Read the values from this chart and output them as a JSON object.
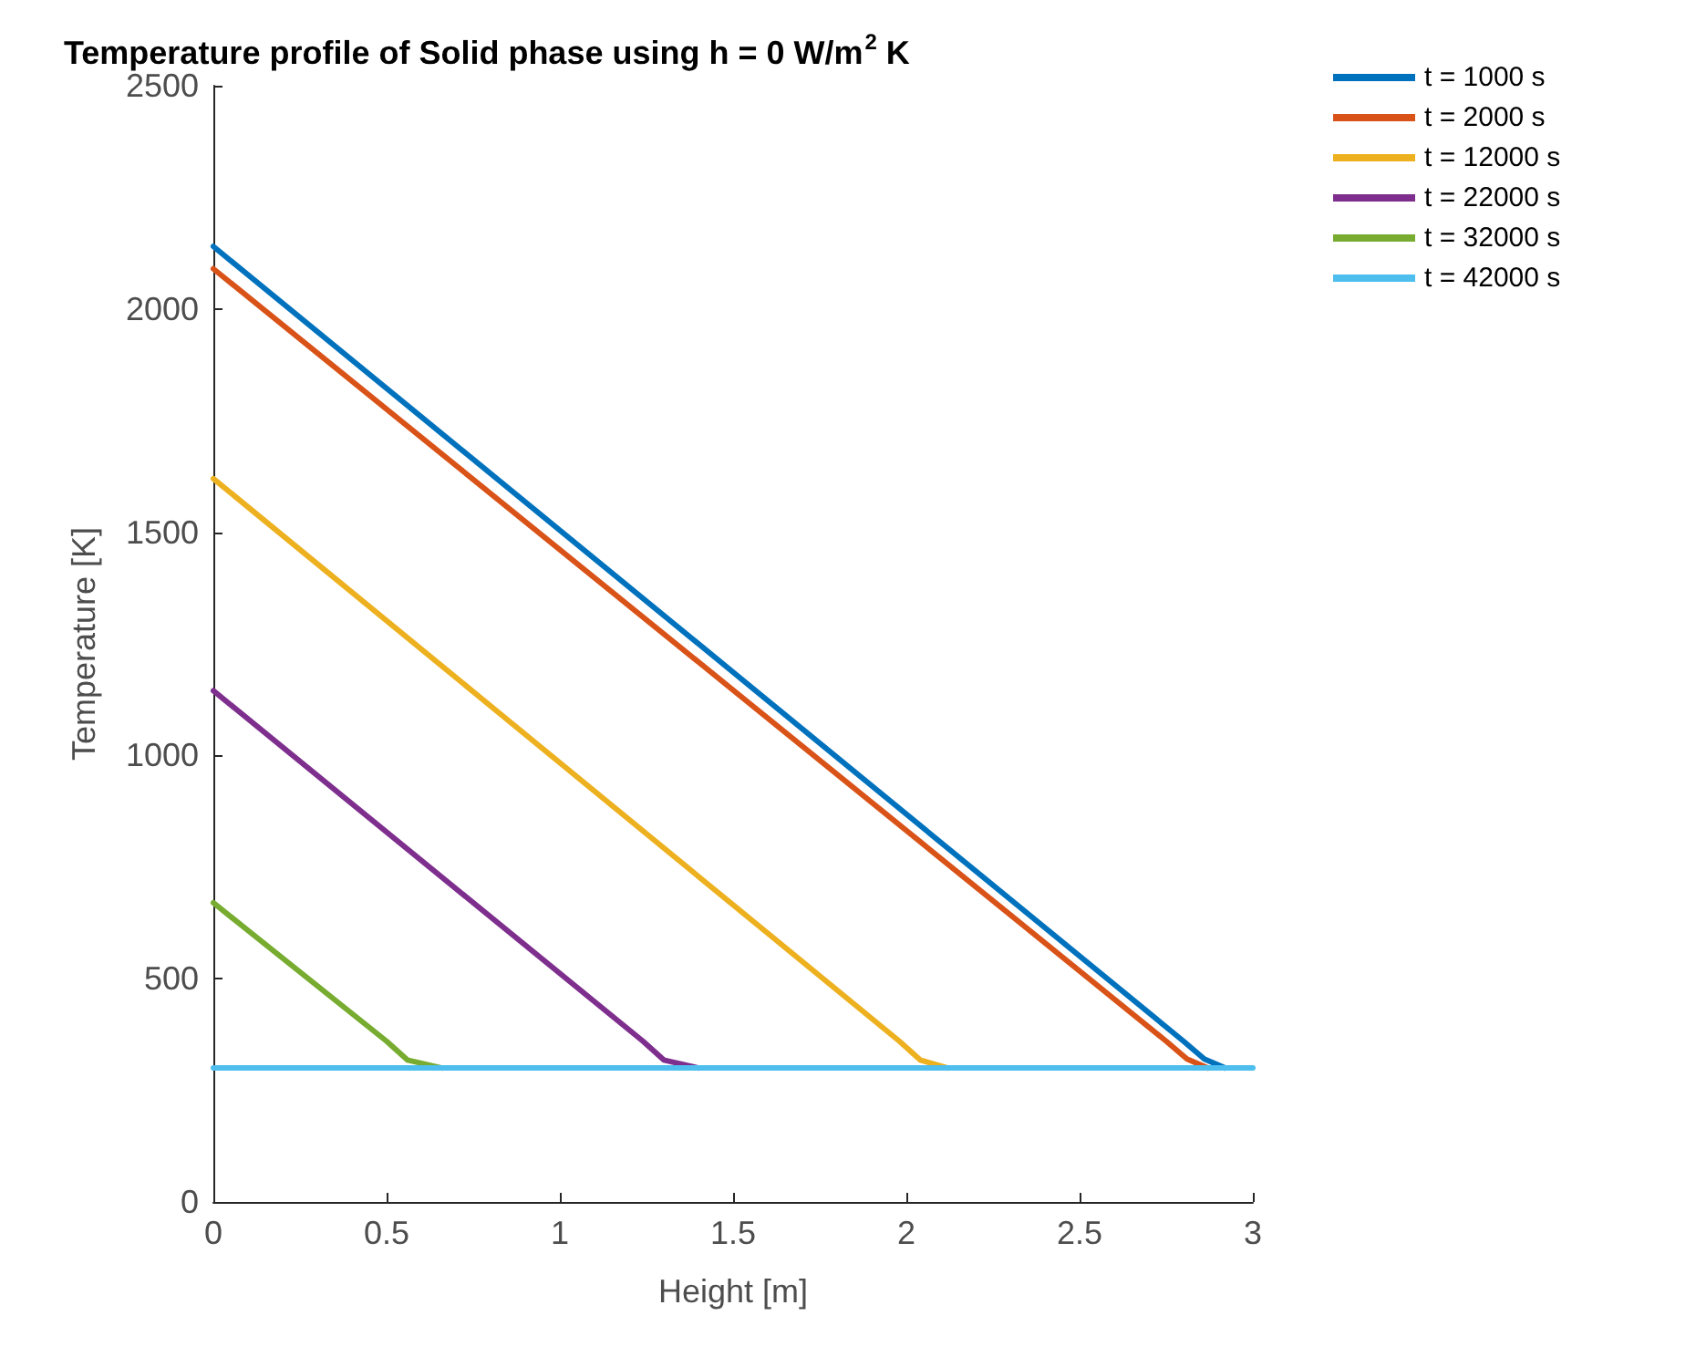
{
  "chart_data": {
    "type": "line",
    "title": "Temperature profile of Solid phase using h = 0 W/m$^{2}$ K",
    "xlabel": "Height [m]",
    "ylabel": "Temperature [K]",
    "series": [
      {
        "name": "t = 1000 s",
        "color": "#0072bd",
        "x": [
          0,
          2.8,
          2.86,
          2.92
        ],
        "values": [
          2140,
          360,
          320,
          300
        ]
      },
      {
        "name": "t = 2000 s",
        "color": "#d95319",
        "x": [
          0,
          2.75,
          2.81,
          2.87
        ],
        "values": [
          2090,
          360,
          320,
          300
        ]
      },
      {
        "name": "t = 12000 s",
        "color": "#edb120",
        "x": [
          0,
          1.98,
          2.04,
          2.12
        ],
        "values": [
          1620,
          360,
          318,
          300
        ]
      },
      {
        "name": "t = 22000 s",
        "color": "#7e2f8e",
        "x": [
          0,
          1.24,
          1.3,
          1.4
        ],
        "values": [
          1145,
          360,
          318,
          300
        ]
      },
      {
        "name": "t = 32000 s",
        "color": "#77ac30",
        "x": [
          0,
          0.5,
          0.56,
          0.66
        ],
        "values": [
          670,
          360,
          318,
          300
        ]
      },
      {
        "name": "t = 42000 s",
        "color": "#4dbeee",
        "x": [
          0,
          3
        ],
        "values": [
          300,
          300
        ]
      }
    ],
    "xlim": [
      0,
      3
    ],
    "xticks": [
      0,
      0.5,
      1,
      1.5,
      2,
      2.5,
      3
    ],
    "ylim": [
      0,
      2500
    ],
    "yticks": [
      0,
      500,
      1000,
      1500,
      2000,
      2500
    ],
    "grid": false,
    "legend": "top right",
    "marker": "none",
    "line_style": "solid"
  }
}
